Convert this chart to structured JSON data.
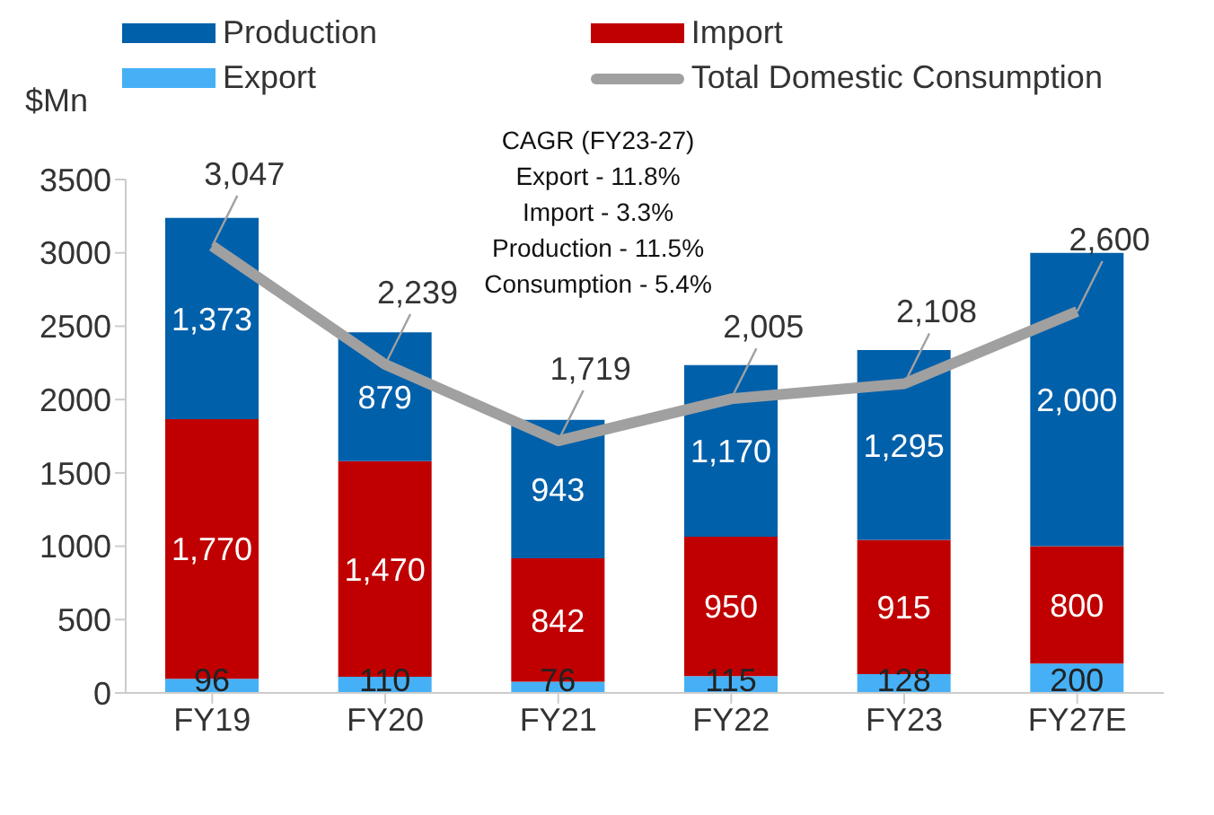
{
  "chart_data": {
    "type": "bar",
    "stacked": true,
    "ylabel": "$Mn",
    "categories": [
      "FY19",
      "FY20",
      "FY21",
      "FY22",
      "FY23",
      "FY27E"
    ],
    "series": [
      {
        "name": "Export",
        "color": "#45b0f5",
        "values": [
          96,
          110,
          76,
          115,
          128,
          200
        ],
        "value_labels": [
          "96",
          "110",
          "76",
          "115",
          "128",
          "200"
        ]
      },
      {
        "name": "Import",
        "color": "#c00000",
        "values": [
          1770,
          1470,
          842,
          950,
          915,
          800
        ],
        "value_labels": [
          "1,770",
          "1,470",
          "842",
          "950",
          "915",
          "800"
        ]
      },
      {
        "name": "Production",
        "color": "#0060aa",
        "values": [
          1373,
          879,
          943,
          1170,
          1295,
          2000
        ],
        "value_labels": [
          "1,373",
          "879",
          "943",
          "1,170",
          "1,295",
          "2,000"
        ]
      },
      {
        "name": "Total Domestic Consumption",
        "type": "line",
        "color": "#a0a0a0",
        "values": [
          3047,
          2239,
          1719,
          2005,
          2108,
          2600
        ],
        "value_labels": [
          "3,047",
          "2,239",
          "1,719",
          "2,005",
          "2,108",
          "2,600"
        ]
      }
    ],
    "ylim": [
      0,
      3500
    ],
    "yticks": [
      0,
      500,
      1000,
      1500,
      2000,
      2500,
      3000,
      3500
    ],
    "grid": false,
    "legend": "top",
    "marker": "none",
    "annotations": [
      "CAGR (FY23-27)",
      "Export - 11.8%",
      "Import - 3.3%",
      "Production - 11.5%",
      "Consumption - 5.4%"
    ]
  }
}
